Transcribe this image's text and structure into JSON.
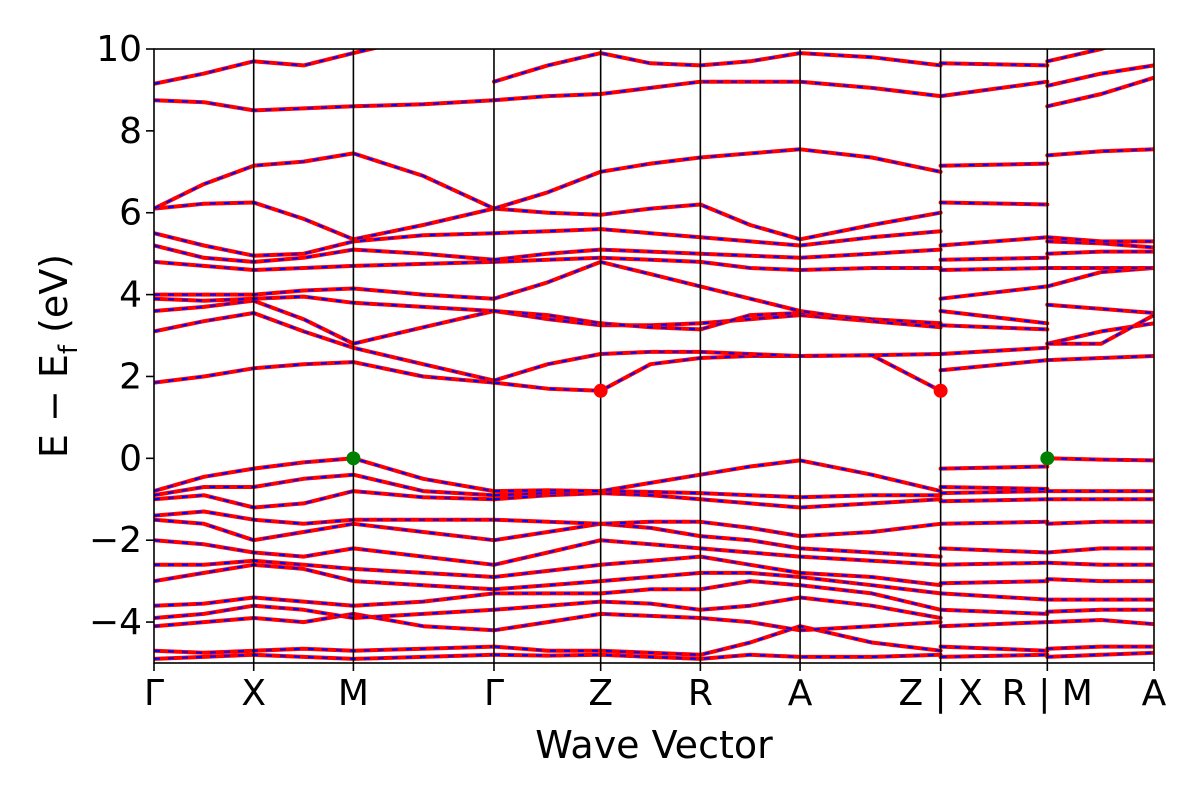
{
  "chart_data": {
    "type": "line",
    "title": "",
    "xlabel": "Wave Vector",
    "ylabel": "E − E",
    "ylabel_sub": "f",
    "ylabel_unit": " (eV)",
    "ylim": [
      -5,
      10
    ],
    "yticks": [
      {
        "value": -4,
        "label": "−4"
      },
      {
        "value": -2,
        "label": "−2"
      },
      {
        "value": 0,
        "label": "0"
      },
      {
        "value": 2,
        "label": "2"
      },
      {
        "value": 4,
        "label": "4"
      },
      {
        "value": 6,
        "label": "6"
      },
      {
        "value": 8,
        "label": "8"
      },
      {
        "value": 10,
        "label": "10"
      }
    ],
    "kpath_segments": [
      {
        "labels": [
          "Γ",
          "X",
          "M",
          "Γ",
          "Z",
          "R",
          "A",
          "Z"
        ],
        "lengths": [
          1,
          1,
          1.41,
          1.07,
          1,
          1,
          1.41
        ]
      },
      {
        "labels": [
          "X",
          "R"
        ],
        "lengths": [
          1.07
        ]
      },
      {
        "labels": [
          "M",
          "A"
        ],
        "lengths": [
          1.07
        ]
      }
    ],
    "xticks": [
      {
        "label": "Γ",
        "pos": 0
      },
      {
        "label": "X",
        "pos": 1
      },
      {
        "label": "M",
        "pos": 2
      },
      {
        "label": "Γ",
        "pos": 3.41
      },
      {
        "label": "Z",
        "pos": 4.48
      },
      {
        "label": "R",
        "pos": 5.48
      },
      {
        "label": "A",
        "pos": 6.48
      },
      {
        "label": "Z | X",
        "pos": 7.89
      },
      {
        "label": "R | M",
        "pos": 8.96
      },
      {
        "label": "A",
        "pos": 10.03
      }
    ],
    "band_color": "#ff0000",
    "band_dash_color": "#0000ff",
    "vbm_color": "#008000",
    "cbm_color": "#ff0000",
    "vbm_points": [
      {
        "x": 2,
        "y": 0
      },
      {
        "x": 8.96,
        "y": 0
      }
    ],
    "cbm_points": [
      {
        "x": 4.48,
        "y": 1.65
      },
      {
        "x": 7.89,
        "y": 1.65
      }
    ],
    "segments": [
      {
        "x": [
          0,
          0.5,
          1,
          1.5,
          2,
          2.7,
          3.41
        ],
        "bands": [
          [
            -4.9,
            -4.85,
            -4.8,
            -4.85,
            -4.9,
            -4.85,
            -4.8
          ],
          [
            -4.7,
            -4.75,
            -4.7,
            -4.65,
            -4.7,
            -4.65,
            -4.6
          ],
          [
            -4.1,
            -4.0,
            -3.9,
            -4.0,
            -3.8,
            -4.1,
            -4.2
          ],
          [
            -3.9,
            -3.8,
            -3.6,
            -3.7,
            -3.9,
            -3.8,
            -3.7
          ],
          [
            -3.6,
            -3.55,
            -3.4,
            -3.5,
            -3.6,
            -3.5,
            -3.3
          ],
          [
            -3.0,
            -2.8,
            -2.6,
            -2.7,
            -3.0,
            -3.1,
            -3.2
          ],
          [
            -2.6,
            -2.6,
            -2.5,
            -2.6,
            -2.7,
            -2.8,
            -2.9
          ],
          [
            -2.0,
            -2.1,
            -2.3,
            -2.4,
            -2.2,
            -2.4,
            -2.6
          ],
          [
            -1.5,
            -1.6,
            -2.0,
            -1.8,
            -1.6,
            -1.8,
            -2.0
          ],
          [
            -1.4,
            -1.3,
            -1.5,
            -1.6,
            -1.5,
            -1.5,
            -1.5
          ],
          [
            -1.0,
            -0.9,
            -1.2,
            -1.1,
            -0.8,
            -0.95,
            -1.0
          ],
          [
            -0.9,
            -0.7,
            -0.7,
            -0.5,
            -0.4,
            -0.8,
            -0.9
          ],
          [
            -0.8,
            -0.45,
            -0.25,
            -0.1,
            0.0,
            -0.5,
            -0.8
          ],
          [
            1.85,
            2.0,
            2.2,
            2.3,
            2.35,
            2.0,
            1.85
          ],
          [
            3.1,
            3.35,
            3.55,
            3.1,
            2.7,
            2.3,
            1.9
          ],
          [
            3.6,
            3.7,
            3.85,
            3.4,
            2.8,
            3.2,
            3.6
          ],
          [
            3.9,
            3.85,
            3.9,
            3.95,
            3.8,
            3.7,
            3.6
          ],
          [
            4.0,
            4.0,
            4.0,
            4.1,
            4.15,
            4.0,
            3.9
          ],
          [
            4.8,
            4.7,
            4.6,
            4.65,
            4.7,
            4.75,
            4.8
          ],
          [
            5.2,
            4.9,
            4.8,
            4.9,
            5.1,
            5.0,
            4.85
          ],
          [
            5.5,
            5.2,
            4.95,
            5.0,
            5.3,
            5.45,
            5.5
          ],
          [
            6.1,
            6.22,
            6.25,
            5.85,
            5.35,
            5.7,
            6.1
          ],
          [
            6.1,
            6.7,
            7.15,
            7.25,
            7.45,
            6.9,
            6.1
          ],
          [
            8.75,
            8.7,
            8.5,
            8.55,
            8.6,
            8.65,
            8.75
          ],
          [
            9.15,
            9.4,
            9.7,
            9.6,
            9.9,
            10.3,
            10.6
          ]
        ]
      },
      {
        "x": [
          3.41,
          3.95,
          4.48,
          4.98,
          5.48,
          5.98,
          6.48,
          7.2,
          7.89
        ],
        "bands": [
          [
            -4.8,
            -4.82,
            -4.8,
            -4.85,
            -4.9,
            -4.8,
            -4.85,
            -4.85,
            -4.8
          ],
          [
            -4.6,
            -4.7,
            -4.7,
            -4.75,
            -4.8,
            -4.5,
            -4.1,
            -4.5,
            -4.7
          ],
          [
            -4.2,
            -4.0,
            -3.8,
            -3.85,
            -3.9,
            -4.0,
            -4.2,
            -4.1,
            -4.0
          ],
          [
            -3.7,
            -3.6,
            -3.5,
            -3.55,
            -3.7,
            -3.6,
            -3.4,
            -3.6,
            -3.9
          ],
          [
            -3.3,
            -3.3,
            -3.3,
            -3.2,
            -3.2,
            -3.0,
            -3.1,
            -3.3,
            -3.7
          ],
          [
            -3.2,
            -3.1,
            -3.0,
            -2.9,
            -2.8,
            -2.8,
            -2.9,
            -3.1,
            -3.3
          ],
          [
            -2.9,
            -2.75,
            -2.6,
            -2.5,
            -2.4,
            -2.6,
            -2.8,
            -2.9,
            -3.1
          ],
          [
            -2.6,
            -2.3,
            -2.0,
            -2.1,
            -2.2,
            -2.3,
            -2.4,
            -2.5,
            -2.6
          ],
          [
            -2.0,
            -1.8,
            -1.6,
            -1.7,
            -1.9,
            -2.0,
            -2.2,
            -2.3,
            -2.4
          ],
          [
            -1.5,
            -1.55,
            -1.6,
            -1.55,
            -1.55,
            -1.7,
            -1.9,
            -1.8,
            -1.6
          ],
          [
            -1.0,
            -0.9,
            -0.85,
            -0.9,
            -1.0,
            -1.1,
            -1.2,
            -1.1,
            -1.0
          ],
          [
            -0.9,
            -0.85,
            -0.8,
            -0.82,
            -0.85,
            -0.9,
            -0.95,
            -0.9,
            -0.9
          ],
          [
            -0.8,
            -0.78,
            -0.8,
            -0.6,
            -0.4,
            -0.2,
            -0.05,
            -0.4,
            -0.8
          ],
          [
            1.85,
            1.7,
            1.65,
            2.3,
            2.45,
            2.5,
            2.5,
            2.52,
            1.65
          ],
          [
            1.9,
            2.3,
            2.55,
            2.6,
            2.6,
            2.55,
            2.5,
            2.52,
            2.55
          ],
          [
            3.6,
            3.4,
            3.25,
            3.25,
            3.3,
            3.4,
            3.5,
            3.35,
            3.25
          ],
          [
            3.6,
            3.5,
            3.3,
            3.2,
            3.15,
            3.5,
            3.55,
            3.4,
            3.3
          ],
          [
            3.9,
            4.3,
            4.8,
            4.5,
            4.2,
            3.9,
            3.6,
            3.35,
            3.2
          ],
          [
            4.8,
            4.85,
            4.9,
            4.85,
            4.8,
            4.65,
            4.6,
            4.65,
            4.65
          ],
          [
            4.85,
            5.0,
            5.1,
            5.05,
            5.0,
            4.95,
            4.9,
            5.0,
            5.1
          ],
          [
            5.5,
            5.55,
            5.6,
            5.5,
            5.4,
            5.3,
            5.2,
            5.4,
            5.55
          ],
          [
            6.1,
            6.0,
            5.95,
            6.1,
            6.2,
            5.7,
            5.35,
            5.7,
            6.0
          ],
          [
            6.1,
            6.5,
            7.0,
            7.2,
            7.35,
            7.45,
            7.55,
            7.35,
            7.0
          ],
          [
            8.75,
            8.85,
            8.9,
            9.05,
            9.2,
            9.2,
            9.2,
            9.05,
            8.85
          ],
          [
            9.2,
            9.6,
            9.9,
            9.65,
            9.6,
            9.7,
            9.9,
            9.8,
            9.6
          ]
        ]
      },
      {
        "x": [
          7.89,
          8.96
        ],
        "bands": [
          [
            -4.85,
            -4.8
          ],
          [
            -4.6,
            -4.7
          ],
          [
            -4.1,
            -4.0
          ],
          [
            -3.7,
            -3.8
          ],
          [
            -3.3,
            -3.45
          ],
          [
            -3.05,
            -3.0
          ],
          [
            -2.6,
            -2.55
          ],
          [
            -2.2,
            -2.3
          ],
          [
            -1.6,
            -1.55
          ],
          [
            -1.05,
            -1.0
          ],
          [
            -0.85,
            -0.8
          ],
          [
            -0.7,
            -0.75
          ],
          [
            -0.25,
            -0.2
          ],
          [
            2.15,
            2.4
          ],
          [
            2.55,
            2.7
          ],
          [
            3.25,
            3.15
          ],
          [
            3.6,
            3.3
          ],
          [
            3.9,
            4.2
          ],
          [
            4.6,
            4.65
          ],
          [
            4.85,
            4.9
          ],
          [
            5.2,
            5.4
          ],
          [
            6.25,
            6.2
          ],
          [
            7.15,
            7.2
          ],
          [
            8.85,
            9.2
          ],
          [
            9.65,
            9.6
          ]
        ]
      },
      {
        "x": [
          8.96,
          9.5,
          10.03
        ],
        "bands": [
          [
            -4.85,
            -4.8,
            -4.75
          ],
          [
            -4.65,
            -4.6,
            -4.6
          ],
          [
            -4.0,
            -3.95,
            -4.05
          ],
          [
            -3.75,
            -3.7,
            -3.7
          ],
          [
            -3.45,
            -3.45,
            -3.45
          ],
          [
            -2.95,
            -3.0,
            -3.0
          ],
          [
            -2.55,
            -2.6,
            -2.6
          ],
          [
            -2.3,
            -2.2,
            -2.2
          ],
          [
            -1.6,
            -1.55,
            -1.55
          ],
          [
            -1.0,
            -1.0,
            -1.0
          ],
          [
            -0.8,
            -0.8,
            -0.8
          ],
          [
            0.0,
            -0.03,
            -0.05
          ],
          [
            2.4,
            2.45,
            2.5
          ],
          [
            2.8,
            3.1,
            3.3
          ],
          [
            2.8,
            2.8,
            3.5
          ],
          [
            3.75,
            3.65,
            3.55
          ],
          [
            4.2,
            4.55,
            4.65
          ],
          [
            4.65,
            4.65,
            4.65
          ],
          [
            5.0,
            5.05,
            5.05
          ],
          [
            5.3,
            5.25,
            5.15
          ],
          [
            5.4,
            5.3,
            5.3
          ],
          [
            7.4,
            7.5,
            7.55
          ],
          [
            8.6,
            8.9,
            9.3
          ],
          [
            9.1,
            9.4,
            9.6
          ],
          [
            9.7,
            10.0,
            10.4
          ]
        ]
      }
    ]
  }
}
